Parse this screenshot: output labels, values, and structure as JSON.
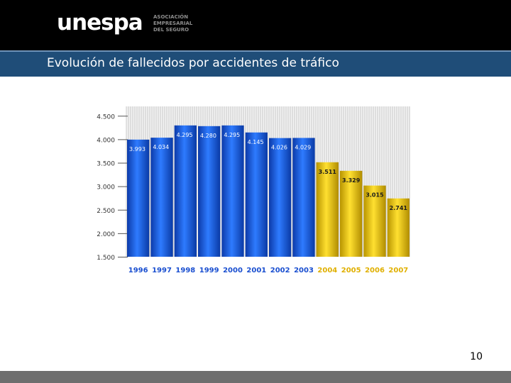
{
  "logo": {
    "wordmark": "unespa",
    "tagline": [
      "ASOCIACIÓN",
      "EMPRESARIAL",
      "DEL SEGURO"
    ]
  },
  "title": "Evolución de fallecidos por accidentes de tráfico",
  "page_number": "10",
  "colors": {
    "header": "#000000",
    "title_bar": "#1f4d78",
    "footer": "#6e6e6e",
    "bar_blue": "#1a5fe0",
    "bar_yellow": "#f0c800"
  },
  "chart_data": {
    "type": "bar",
    "categories": [
      "1996",
      "1997",
      "1998",
      "1999",
      "2000",
      "2001",
      "2002",
      "2003",
      "2004",
      "2005",
      "2006",
      "2007"
    ],
    "values": [
      3993,
      4034,
      4295,
      4280,
      4295,
      4145,
      4026,
      4029,
      3511,
      3329,
      3015,
      2741
    ],
    "data_labels": [
      "3.993",
      "4.034",
      "4.295",
      "4.280",
      "4.295",
      "4.145",
      "4.026",
      "4.029",
      "3.511",
      "3.329",
      "3.015",
      "2.741"
    ],
    "series_colors": [
      "blue",
      "blue",
      "blue",
      "blue",
      "blue",
      "blue",
      "blue",
      "blue",
      "yellow",
      "yellow",
      "yellow",
      "yellow"
    ],
    "yticks": [
      1500,
      2000,
      2500,
      3000,
      3500,
      4000,
      4500
    ],
    "ytick_labels": [
      "1.500",
      "2.000",
      "2.500",
      "3.000",
      "3.500",
      "4.000",
      "4.500"
    ],
    "ylim": [
      1500,
      4700
    ],
    "title": "",
    "xlabel": "",
    "ylabel": "",
    "grid": true
  }
}
